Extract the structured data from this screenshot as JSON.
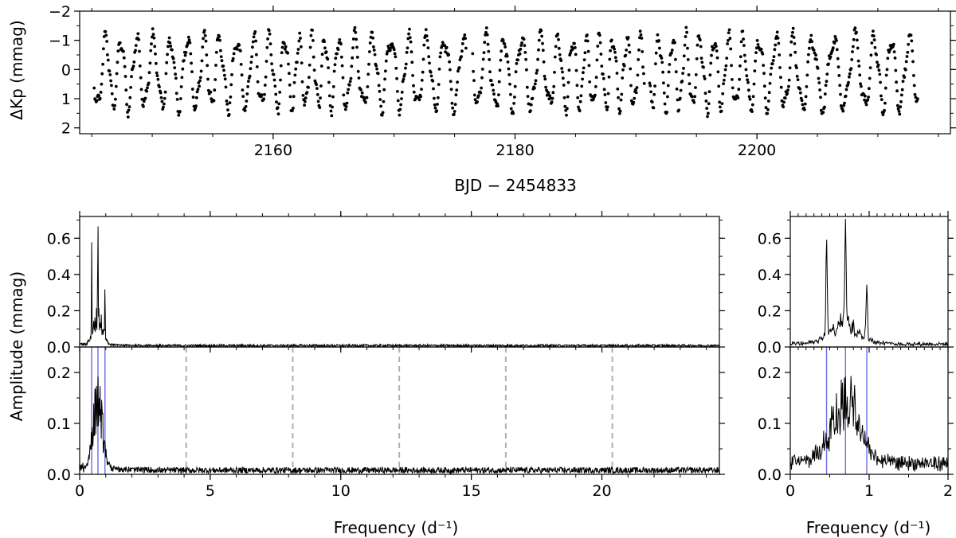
{
  "chart_data": [
    {
      "id": "light-curve",
      "type": "scatter",
      "xlabel": "BJD − 2454833",
      "ylabel": "ΔKp (mmag)",
      "xlim": [
        2144,
        2216
      ],
      "ylim": [
        2.2,
        -2.0
      ],
      "y_inverted": true,
      "x_ticks": [
        2160,
        2180,
        2200
      ],
      "y_ticks": [
        -2,
        -1,
        0,
        1,
        2
      ],
      "x_range_observed": [
        2145.2,
        2213.3
      ],
      "grid": false,
      "marker_color": "#000000"
    },
    {
      "id": "spectrum-full",
      "type": "line",
      "xlim": [
        0,
        24.5
      ],
      "ylim": [
        0,
        0.72
      ],
      "y_ticks": [
        0.0,
        0.2,
        0.4,
        0.6
      ],
      "x_ticks": [
        0,
        5,
        10,
        15,
        20
      ],
      "peaks": [
        {
          "x": 0.46,
          "y": 0.52
        },
        {
          "x": 0.7,
          "y": 0.61
        },
        {
          "x": 0.97,
          "y": 0.3
        }
      ],
      "line_color": "#000000"
    },
    {
      "id": "spectrum-full-prewhitened",
      "type": "line",
      "xlabel": "Frequency (d⁻¹)",
      "ylim": [
        0,
        0.25
      ],
      "xlim": [
        0,
        24.5
      ],
      "y_ticks": [
        0.0,
        0.1,
        0.2
      ],
      "x_ticks": [
        0,
        5,
        10,
        15,
        20
      ],
      "blue_lines": [
        0.46,
        0.7,
        0.97
      ],
      "dashed_lines": [
        4.08,
        8.16,
        12.24,
        16.32,
        20.4
      ],
      "line_color": "#000000"
    },
    {
      "id": "spectrum-zoom",
      "type": "line",
      "xlim": [
        0,
        2
      ],
      "ylim": [
        0,
        0.72
      ],
      "y_ticks": [
        0.0,
        0.2,
        0.4,
        0.6
      ],
      "peaks": [
        {
          "x": 0.46,
          "y": 0.52
        },
        {
          "x": 0.7,
          "y": 0.61
        },
        {
          "x": 0.97,
          "y": 0.3
        }
      ]
    },
    {
      "id": "spectrum-zoom-prewhitened",
      "type": "line",
      "xlabel": "Frequency (d⁻¹)",
      "xlim": [
        0,
        2
      ],
      "ylim": [
        0,
        0.25
      ],
      "y_ticks": [
        0.0,
        0.1,
        0.2
      ],
      "x_ticks": [
        0,
        1,
        2
      ],
      "blue_lines": [
        0.46,
        0.7,
        0.97
      ]
    }
  ],
  "shared_ylabel": "Amplitude (mmag)",
  "colors": {
    "blue": "#6b6be8",
    "dash": "#b0b0b0",
    "ink": "#000000"
  }
}
